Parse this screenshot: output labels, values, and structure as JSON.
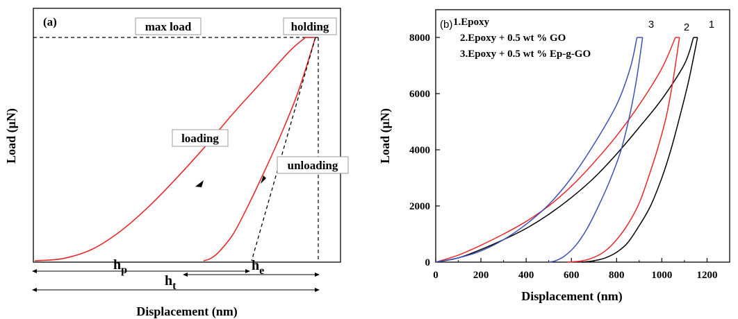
{
  "chart_data": [
    {
      "type": "line",
      "panel_label": "(a)",
      "xlabel": "Displacement (nm)",
      "ylabel": "Load (μN)",
      "annotations": [
        "max load",
        "holding",
        "loading",
        "unloading"
      ],
      "dimension_labels": {
        "hp": {
          "main": "h",
          "sub": "p"
        },
        "ht": {
          "main": "h",
          "sub": "t"
        },
        "he": {
          "main": "h",
          "sub": "e"
        }
      },
      "series": [
        {
          "role": "loading",
          "points": [
            [
              0.0,
              0.0
            ],
            [
              0.1,
              0.01
            ],
            [
              0.2,
              0.05
            ],
            [
              0.3,
              0.13
            ],
            [
              0.4,
              0.24
            ],
            [
              0.5,
              0.37
            ],
            [
              0.6,
              0.51
            ],
            [
              0.7,
              0.66
            ],
            [
              0.8,
              0.8
            ],
            [
              0.9,
              0.94
            ],
            [
              0.955,
              1.0
            ]
          ]
        },
        {
          "role": "holding",
          "points": [
            [
              0.955,
              1.0
            ],
            [
              0.99,
              1.0
            ]
          ]
        },
        {
          "role": "unloading",
          "points": [
            [
              0.99,
              1.0
            ],
            [
              0.93,
              0.76
            ],
            [
              0.87,
              0.57
            ],
            [
              0.81,
              0.4
            ],
            [
              0.75,
              0.24
            ],
            [
              0.7,
              0.12
            ],
            [
              0.65,
              0.04
            ],
            [
              0.62,
              0.01
            ],
            [
              0.595,
              0.0
            ]
          ]
        },
        {
          "role": "tangent",
          "points": [
            [
              0.99,
              1.0
            ],
            [
              0.765,
              0.0
            ]
          ]
        }
      ],
      "colors": {
        "curve": "#e8282a",
        "guide": "#000000"
      }
    },
    {
      "type": "line",
      "panel_label": "(b)",
      "xlabel": "Displacement (nm)",
      "ylabel": "Load (μN)",
      "xlim": [
        0,
        1300
      ],
      "ylim": [
        0,
        8000
      ],
      "x_ticks": [
        0,
        200,
        400,
        600,
        800,
        1000,
        1200
      ],
      "y_ticks": [
        0,
        2000,
        4000,
        6000,
        8000
      ],
      "legend": [
        "1.Epoxy",
        "2.Epoxy + 0.5 wt %  GO",
        "3.Epoxy + 0.5 wt % Ep-g-GO"
      ],
      "curve_labels": [
        "1",
        "2",
        "3"
      ],
      "series": [
        {
          "label": "1",
          "color": "#000000",
          "loading": [
            [
              0,
              0
            ],
            [
              100,
              150
            ],
            [
              200,
              450
            ],
            [
              300,
              800
            ],
            [
              400,
              1200
            ],
            [
              500,
              1700
            ],
            [
              600,
              2300
            ],
            [
              700,
              3000
            ],
            [
              800,
              3850
            ],
            [
              900,
              4800
            ],
            [
              1000,
              5800
            ],
            [
              1100,
              7050
            ],
            [
              1140,
              8000
            ]
          ],
          "holding": [
            [
              1140,
              8000
            ],
            [
              1158,
              8000
            ]
          ],
          "unloading": [
            [
              1158,
              8000
            ],
            [
              1120,
              6500
            ],
            [
              1080,
              5200
            ],
            [
              1040,
              4000
            ],
            [
              1000,
              3000
            ],
            [
              950,
              2000
            ],
            [
              900,
              1300
            ],
            [
              850,
              700
            ],
            [
              800,
              350
            ],
            [
              750,
              150
            ],
            [
              700,
              50
            ],
            [
              660,
              10
            ],
            [
              645,
              0
            ]
          ]
        },
        {
          "label": "2",
          "color": "#e8282a",
          "loading": [
            [
              0,
              0
            ],
            [
              100,
              250
            ],
            [
              200,
              600
            ],
            [
              300,
              1000
            ],
            [
              400,
              1450
            ],
            [
              500,
              2000
            ],
            [
              600,
              2700
            ],
            [
              700,
              3550
            ],
            [
              800,
              4500
            ],
            [
              900,
              5600
            ],
            [
              1000,
              6900
            ],
            [
              1060,
              8000
            ]
          ],
          "holding": [
            [
              1060,
              8000
            ],
            [
              1078,
              8000
            ]
          ],
          "unloading": [
            [
              1078,
              8000
            ],
            [
              1050,
              6500
            ],
            [
              1020,
              5200
            ],
            [
              980,
              4000
            ],
            [
              940,
              3000
            ],
            [
              900,
              2100
            ],
            [
              850,
              1350
            ],
            [
              800,
              800
            ],
            [
              750,
              400
            ],
            [
              700,
              170
            ],
            [
              650,
              50
            ],
            [
              600,
              10
            ],
            [
              580,
              0
            ]
          ]
        },
        {
          "label": "3",
          "color": "#3a50b5",
          "loading": [
            [
              0,
              0
            ],
            [
              100,
              150
            ],
            [
              200,
              400
            ],
            [
              300,
              800
            ],
            [
              400,
              1350
            ],
            [
              500,
              2050
            ],
            [
              600,
              3000
            ],
            [
              700,
              4200
            ],
            [
              800,
              5600
            ],
            [
              860,
              6900
            ],
            [
              890,
              8000
            ]
          ],
          "holding": [
            [
              890,
              8000
            ],
            [
              915,
              8000
            ]
          ],
          "unloading": [
            [
              915,
              8000
            ],
            [
              890,
              6600
            ],
            [
              860,
              5300
            ],
            [
              820,
              4000
            ],
            [
              770,
              2900
            ],
            [
              720,
              2000
            ],
            [
              670,
              1200
            ],
            [
              620,
              600
            ],
            [
              570,
              220
            ],
            [
              530,
              50
            ],
            [
              500,
              0
            ]
          ]
        }
      ]
    }
  ]
}
